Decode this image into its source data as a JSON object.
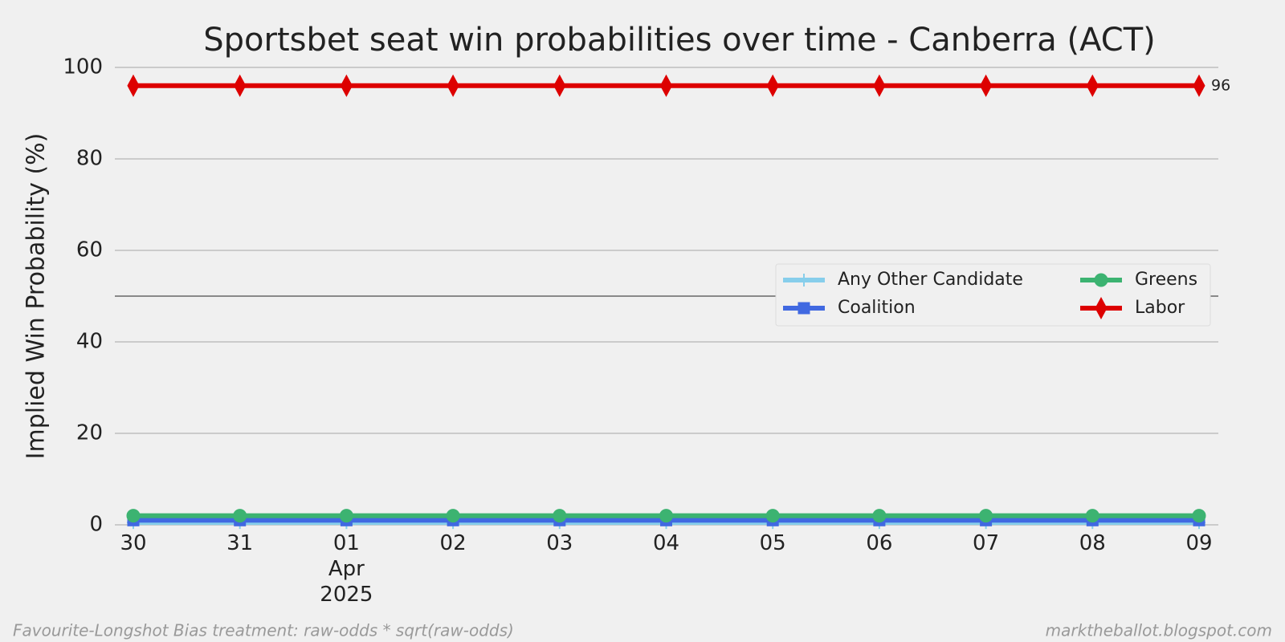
{
  "chart_data": {
    "type": "line",
    "title": "Sportsbet seat win probabilities over time - Canberra (ACT)",
    "y_label": "Implied Win Probability (%)",
    "footnote_left": "Favourite-Longshot Bias treatment: raw-odds * sqrt(raw-odds)",
    "footnote_right": "marktheballot.blogspot.com",
    "categories": [
      "30",
      "31",
      "01\nApr\n2025",
      "02",
      "03",
      "04",
      "05",
      "06",
      "07",
      "08",
      "09"
    ],
    "series": [
      {
        "name": "Any Other Candidate",
        "color": "#87ceeb",
        "marker": "plus",
        "values": [
          0.5,
          0.5,
          0.5,
          0.5,
          0.5,
          0.5,
          0.5,
          0.5,
          0.5,
          0.5,
          0.5
        ]
      },
      {
        "name": "Coalition",
        "color": "#4169e1",
        "marker": "square",
        "values": [
          1,
          1,
          1,
          1,
          1,
          1,
          1,
          1,
          1,
          1,
          1
        ]
      },
      {
        "name": "Greens",
        "color": "#3cb371",
        "marker": "circle",
        "values": [
          2,
          2,
          2,
          2,
          2,
          2,
          2,
          2,
          2,
          2,
          2
        ]
      },
      {
        "name": "Labor",
        "color": "#dd0000",
        "marker": "diamond",
        "values": [
          96,
          96,
          96,
          96,
          96,
          96,
          96,
          96,
          96,
          96,
          96
        ],
        "end_label": true
      }
    ],
    "ylim": [
      0,
      100
    ],
    "yticks": [
      0,
      20,
      40,
      60,
      80,
      100
    ],
    "grid": true,
    "hline": 50,
    "legend": "center right"
  }
}
